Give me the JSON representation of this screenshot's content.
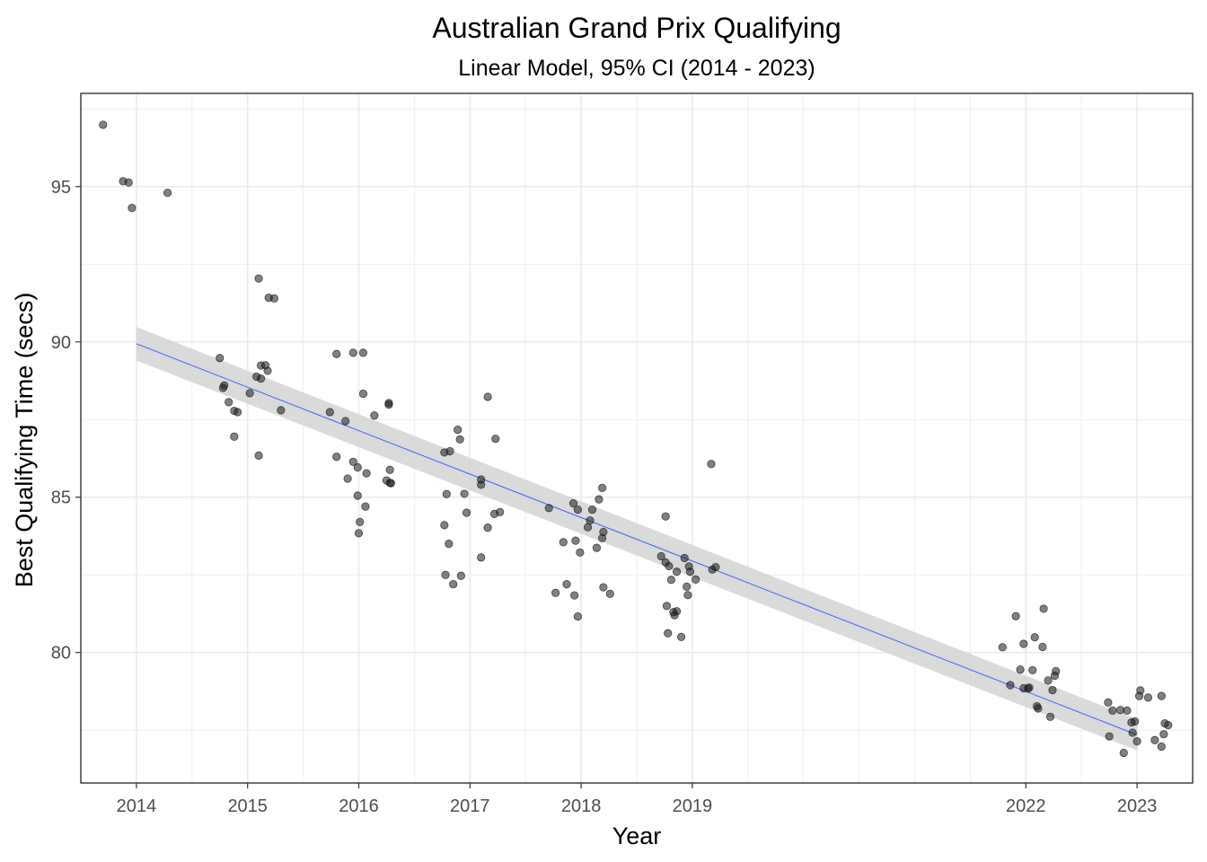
{
  "chart_data": {
    "type": "scatter",
    "title": "Australian Grand Prix Qualifying",
    "subtitle": "Linear Model, 95% CI (2014 - 2023)",
    "xlabel": "Year",
    "ylabel": "Best Qualifying Time (secs)",
    "xlim": [
      2013.5,
      2023.5
    ],
    "ylim": [
      75.8,
      98.0
    ],
    "x_ticks": [
      2014,
      2015,
      2016,
      2017,
      2018,
      2019,
      2022,
      2023
    ],
    "x_tick_labels": [
      "2014",
      "2015",
      "2016",
      "2017",
      "2018",
      "2019",
      "2022",
      "2023"
    ],
    "y_ticks": [
      80,
      85,
      90,
      95
    ],
    "y_tick_labels": [
      "80",
      "85",
      "90",
      "95"
    ],
    "grid": true,
    "legend": "none",
    "colors": {
      "points": "#1a1a1a",
      "fit_line": "#3366ff",
      "ci_band": "#d4d4d4",
      "grid": "#ebebeb",
      "panel_border": "#333333"
    },
    "fit": {
      "method": "linear",
      "confidence": 0.95,
      "x": [
        2014,
        2023
      ],
      "y": [
        89.94,
        77.35
      ],
      "ci_lower": [
        89.4,
        76.85
      ],
      "ci_upper": [
        90.48,
        77.85
      ]
    },
    "points": [
      [
        2013.7,
        96.99
      ],
      [
        2013.88,
        95.17
      ],
      [
        2013.93,
        95.13
      ],
      [
        2013.96,
        94.31
      ],
      [
        2014.28,
        94.8
      ],
      [
        2014.75,
        89.48
      ],
      [
        2014.78,
        88.52
      ],
      [
        2014.79,
        88.6
      ],
      [
        2014.83,
        88.06
      ],
      [
        2014.88,
        86.95
      ],
      [
        2014.88,
        87.78
      ],
      [
        2014.91,
        87.74
      ],
      [
        2015.02,
        88.35
      ],
      [
        2015.08,
        88.88
      ],
      [
        2015.1,
        86.34
      ],
      [
        2015.1,
        92.04
      ],
      [
        2015.12,
        89.24
      ],
      [
        2015.12,
        88.82
      ],
      [
        2015.16,
        89.25
      ],
      [
        2015.18,
        89.07
      ],
      [
        2015.19,
        91.42
      ],
      [
        2015.24,
        91.4
      ],
      [
        2015.3,
        87.8
      ],
      [
        2015.74,
        87.74
      ],
      [
        2015.8,
        89.61
      ],
      [
        2015.8,
        86.3
      ],
      [
        2015.88,
        87.45
      ],
      [
        2015.9,
        85.6
      ],
      [
        2015.95,
        89.65
      ],
      [
        2015.95,
        86.14
      ],
      [
        2015.99,
        85.05
      ],
      [
        2015.99,
        85.96
      ],
      [
        2016.0,
        83.84
      ],
      [
        2016.01,
        84.2
      ],
      [
        2016.04,
        88.33
      ],
      [
        2016.04,
        89.65
      ],
      [
        2016.06,
        84.7
      ],
      [
        2016.07,
        85.77
      ],
      [
        2016.14,
        87.63
      ],
      [
        2016.25,
        85.54
      ],
      [
        2016.27,
        88.03
      ],
      [
        2016.27,
        87.98
      ],
      [
        2016.28,
        85.88
      ],
      [
        2016.28,
        85.46
      ],
      [
        2016.29,
        85.45
      ],
      [
        2016.77,
        86.44
      ],
      [
        2016.77,
        84.1
      ],
      [
        2016.78,
        82.5
      ],
      [
        2016.79,
        85.1
      ],
      [
        2016.81,
        83.5
      ],
      [
        2016.82,
        86.48
      ],
      [
        2016.85,
        82.2
      ],
      [
        2016.89,
        87.17
      ],
      [
        2016.91,
        86.86
      ],
      [
        2016.92,
        82.47
      ],
      [
        2016.95,
        85.11
      ],
      [
        2016.97,
        84.5
      ],
      [
        2017.1,
        85.57
      ],
      [
        2017.1,
        85.4
      ],
      [
        2017.1,
        83.06
      ],
      [
        2017.16,
        88.23
      ],
      [
        2017.16,
        84.02
      ],
      [
        2017.22,
        84.46
      ],
      [
        2017.23,
        86.88
      ],
      [
        2017.27,
        84.52
      ],
      [
        2017.71,
        84.65
      ],
      [
        2017.77,
        81.92
      ],
      [
        2017.84,
        83.55
      ],
      [
        2017.87,
        82.2
      ],
      [
        2017.93,
        84.8
      ],
      [
        2017.94,
        81.84
      ],
      [
        2017.95,
        83.6
      ],
      [
        2017.97,
        84.6
      ],
      [
        2017.97,
        81.16
      ],
      [
        2017.99,
        83.22
      ],
      [
        2018.06,
        84.03
      ],
      [
        2018.08,
        84.25
      ],
      [
        2018.1,
        84.6
      ],
      [
        2018.14,
        83.37
      ],
      [
        2018.16,
        84.93
      ],
      [
        2018.19,
        85.3
      ],
      [
        2018.19,
        83.68
      ],
      [
        2018.2,
        83.88
      ],
      [
        2018.2,
        82.1
      ],
      [
        2018.26,
        81.89
      ],
      [
        2018.72,
        83.1
      ],
      [
        2018.76,
        84.38
      ],
      [
        2018.76,
        82.9
      ],
      [
        2018.77,
        81.5
      ],
      [
        2018.78,
        80.62
      ],
      [
        2018.79,
        82.78
      ],
      [
        2018.81,
        82.34
      ],
      [
        2018.83,
        81.3
      ],
      [
        2018.84,
        81.2
      ],
      [
        2018.86,
        82.6
      ],
      [
        2018.86,
        81.33
      ],
      [
        2018.9,
        80.5
      ],
      [
        2018.93,
        83.04
      ],
      [
        2018.95,
        82.12
      ],
      [
        2018.96,
        81.85
      ],
      [
        2018.97,
        82.77
      ],
      [
        2018.98,
        82.6
      ],
      [
        2019.03,
        82.35
      ],
      [
        2019.17,
        86.07
      ],
      [
        2019.18,
        82.67
      ],
      [
        2019.21,
        82.75
      ],
      [
        2021.79,
        80.17
      ],
      [
        2021.86,
        78.95
      ],
      [
        2021.91,
        81.17
      ],
      [
        2021.95,
        79.45
      ],
      [
        2021.98,
        80.28
      ],
      [
        2022.03,
        78.87
      ],
      [
        2022.06,
        79.43
      ],
      [
        2022.08,
        80.49
      ],
      [
        2022.1,
        78.27
      ],
      [
        2022.11,
        78.2
      ],
      [
        2022.15,
        80.18
      ],
      [
        2022.16,
        81.41
      ],
      [
        2022.2,
        79.1
      ],
      [
        2022.22,
        77.93
      ],
      [
        2022.24,
        78.79
      ],
      [
        2022.26,
        79.25
      ],
      [
        2022.27,
        79.4
      ],
      [
        2021.98,
        78.85
      ],
      [
        2022.02,
        78.84
      ],
      [
        2022.74,
        78.39
      ],
      [
        2022.75,
        77.3
      ],
      [
        2022.78,
        78.13
      ],
      [
        2022.85,
        78.15
      ],
      [
        2022.88,
        76.77
      ],
      [
        2022.91,
        78.13
      ],
      [
        2022.95,
        77.75
      ],
      [
        2022.96,
        77.42
      ],
      [
        2022.98,
        77.78
      ],
      [
        2023.0,
        77.14
      ],
      [
        2023.02,
        78.6
      ],
      [
        2023.03,
        78.78
      ],
      [
        2023.1,
        78.55
      ],
      [
        2023.16,
        77.18
      ],
      [
        2023.22,
        76.97
      ],
      [
        2023.22,
        78.6
      ],
      [
        2023.24,
        77.37
      ],
      [
        2023.25,
        77.72
      ],
      [
        2023.28,
        77.66
      ]
    ]
  }
}
